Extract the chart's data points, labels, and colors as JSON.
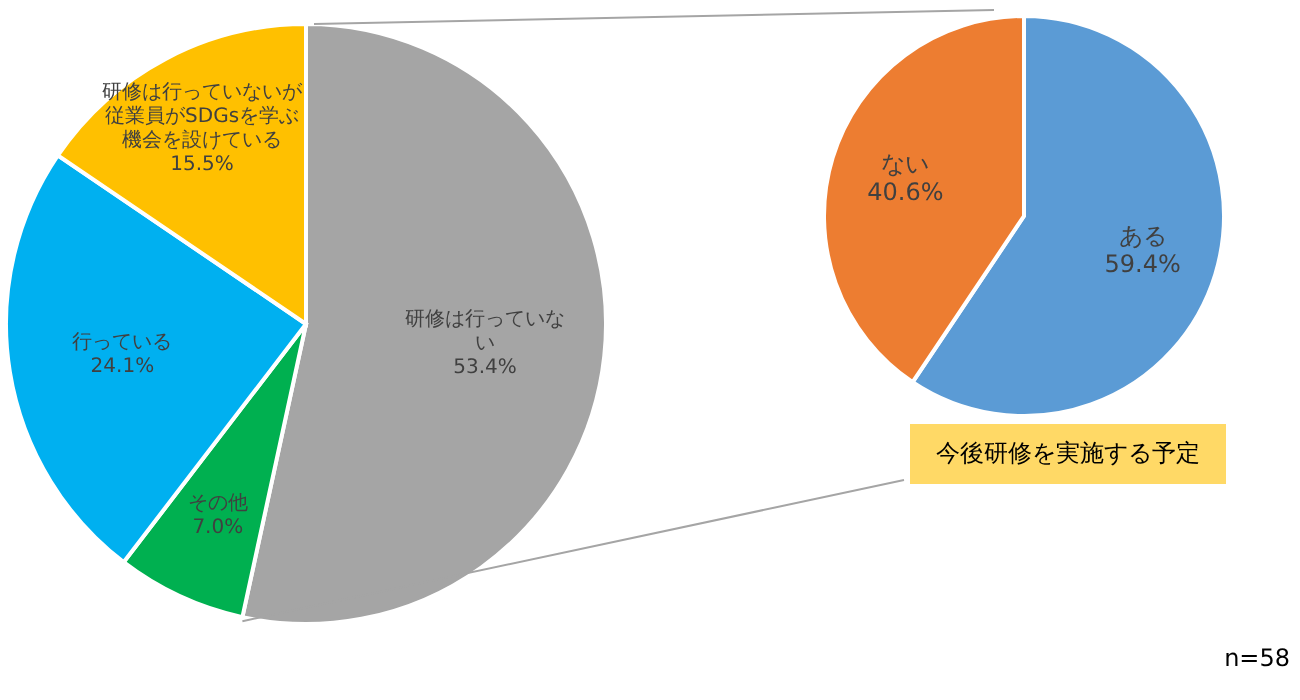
{
  "chart_data": [
    {
      "type": "pie",
      "categories": [
        "研修は行っていない",
        "その他",
        "行っている",
        "研修は行っていないが従業員がSDGsを学ぶ機会を設けている"
      ],
      "values": [
        53.4,
        7.0,
        24.1,
        15.5
      ],
      "colors": [
        "#a5a5a5",
        "#00b050",
        "#00b0f0",
        "#ffc000"
      ],
      "value_labels": [
        "53.4%",
        "7.0%",
        "24.1%",
        "15.5%"
      ]
    },
    {
      "type": "pie",
      "title": "今後研修を実施する予定",
      "categories": [
        "ある",
        "ない"
      ],
      "values": [
        59.4,
        40.6
      ],
      "colors": [
        "#5b9bd5",
        "#ed7d31"
      ],
      "value_labels": [
        "59.4%",
        "40.6%"
      ],
      "annotations": [
        "n=58"
      ]
    }
  ]
}
